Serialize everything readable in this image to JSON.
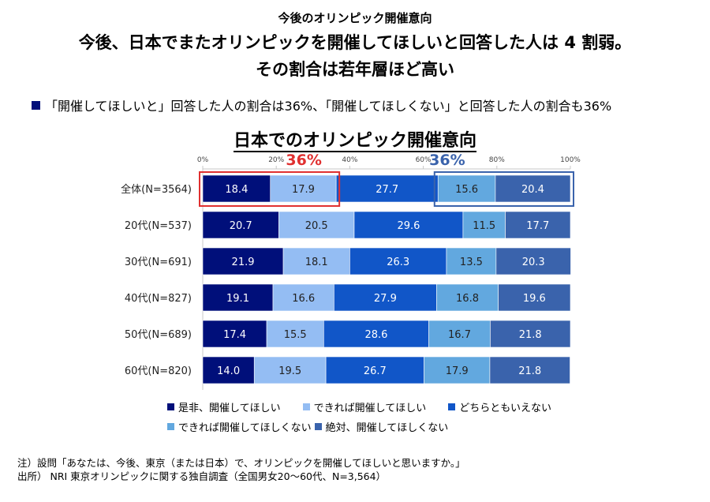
{
  "header": {
    "kicker": "今後のオリンピック開催意向",
    "headline_line1": "今後、日本でまたオリンピックを開催してほしいと回答した人は 4 割弱。",
    "headline_line2": "その割合は若年層ほど高い"
  },
  "bullet": {
    "text": "「開催してほしいと」回答した人の割合は36%、「開催してほしくない」と回答した人の割合も36%"
  },
  "chart_data": {
    "type": "bar",
    "orientation": "horizontal",
    "stacked": true,
    "title": "日本でのオリンピック開催意向",
    "xlabel": "",
    "ylabel": "",
    "xlim": [
      0,
      100
    ],
    "x_ticks": [
      "0%",
      "20%",
      "40%",
      "60%",
      "80%",
      "100%"
    ],
    "grid": false,
    "legend_position": "bottom",
    "categories": [
      "全体(N=3564)",
      "20代(N=537)",
      "30代(N=691)",
      "40代(N=827)",
      "50代(N=689)",
      "60代(N=820)"
    ],
    "series": [
      {
        "name": "是非、開催してほしい",
        "color": "#000f7a",
        "label_color": "#ffffff",
        "values": [
          18.4,
          20.7,
          21.9,
          19.1,
          17.4,
          14.0
        ]
      },
      {
        "name": "できれば開催してほしい",
        "color": "#94bdf3",
        "label_color": "#222222",
        "values": [
          17.9,
          20.5,
          18.1,
          16.6,
          15.5,
          19.5
        ]
      },
      {
        "name": "どちらともいえない",
        "color": "#1156c8",
        "label_color": "#ffffff",
        "values": [
          27.7,
          29.6,
          26.3,
          27.9,
          28.6,
          26.7
        ]
      },
      {
        "name": "できれば開催してほしくない",
        "color": "#62a8df",
        "label_color": "#222222",
        "values": [
          15.6,
          11.5,
          13.5,
          16.8,
          16.7,
          17.9
        ]
      },
      {
        "name": "絶対、開催してほしくない",
        "color": "#3a63ac",
        "label_color": "#ffffff",
        "values": [
          20.4,
          17.7,
          20.3,
          19.6,
          21.8,
          21.8
        ]
      }
    ],
    "annotations": [
      {
        "text": "36%",
        "color": "#e03030",
        "highlights_row": 0,
        "from": 0,
        "to": 36.3
      },
      {
        "text": "36%",
        "color": "#3a63ac",
        "highlights_row": 0,
        "from": 63.9,
        "to": 100
      }
    ]
  },
  "notes": {
    "note": "注）設問「あなたは、今後、東京（または日本）で、オリンピックを開催してほしいと思いますか。」",
    "source": "出所） NRI 東京オリンピックに関する独自調査（全国男女20～60代、N=3,564）"
  }
}
